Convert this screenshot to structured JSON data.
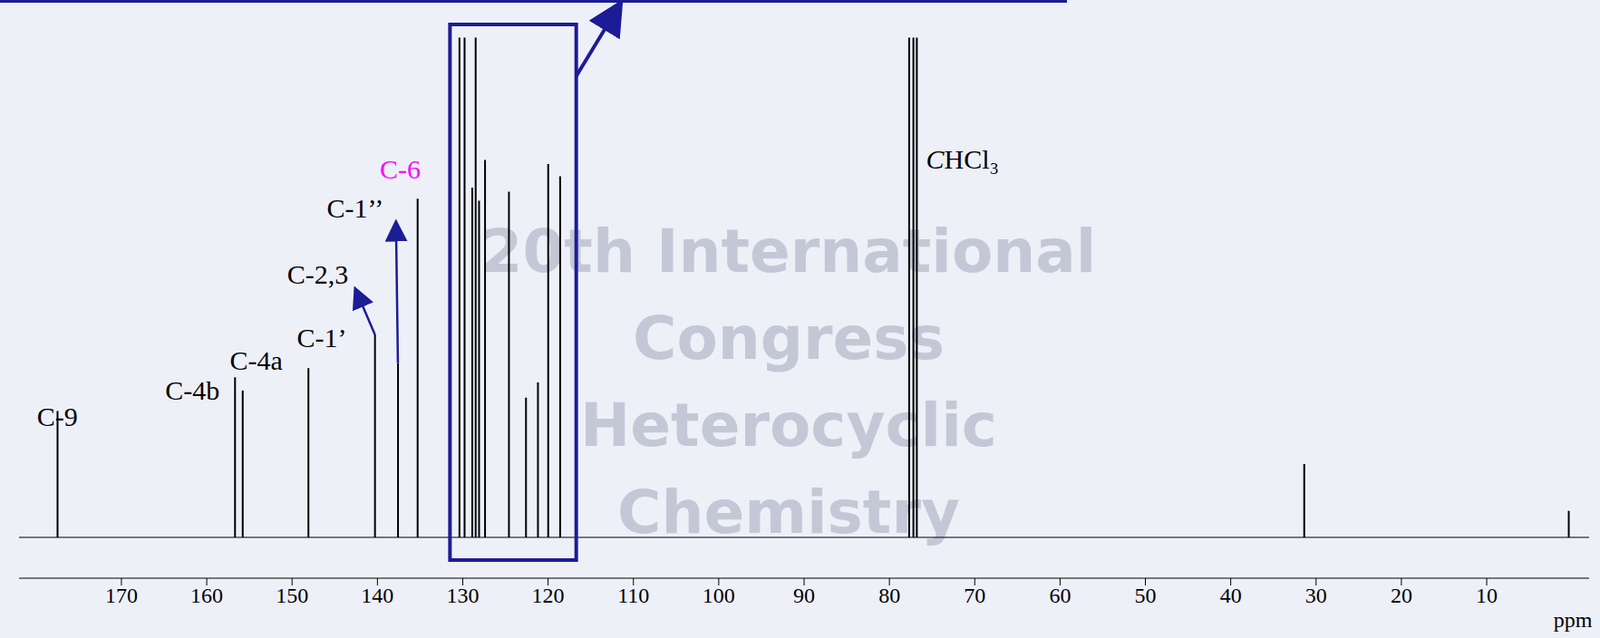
{
  "chart_data": {
    "type": "bar",
    "x_label": "ppm",
    "x": [
      177.5,
      156.7,
      155.8,
      148.1,
      140.3,
      137.6,
      135.3,
      130.4,
      129.8,
      128.9,
      128.5,
      128.1,
      127.4,
      124.6,
      122.6,
      121.2,
      120.0,
      118.6,
      77.7,
      77.2,
      76.8,
      31.4,
      0.4
    ],
    "values": [
      124,
      157,
      144,
      166,
      199,
      171,
      332,
      490,
      490,
      343,
      490,
      330,
      370,
      339,
      137,
      152,
      366,
      354,
      490,
      490,
      490,
      72,
      26
    ],
    "color": "#000000",
    "baseline": 0,
    "xlim": [
      182,
      -2
    ],
    "xticks": [
      170,
      160,
      150,
      140,
      130,
      120,
      110,
      100,
      90,
      80,
      70,
      60,
      50,
      40,
      30,
      20,
      10
    ],
    "ylim": [
      -40,
      510
    ],
    "tick_labels": "x",
    "grid": false,
    "legend": false,
    "annotations": [
      {
        "text": "C-9",
        "x": 177.5
      },
      {
        "text": "C-4b",
        "x": 156.7
      },
      {
        "text": "C-4a",
        "x": 155.8
      },
      {
        "text": "C-1’",
        "x": 148.1
      },
      {
        "text": "C-2,3",
        "x": 140.3
      },
      {
        "text": "C-1’’",
        "x": 137.6
      },
      {
        "text": "C-6",
        "x": 135.3,
        "color": "#ff00ff"
      },
      {
        "text": "CHCl₃",
        "x": 77.2
      }
    ],
    "expansion_region": [
      131.5,
      116.7
    ],
    "watermark": [
      "20th International",
      "Congress",
      "Heterocyclic",
      "Chemistry"
    ]
  }
}
